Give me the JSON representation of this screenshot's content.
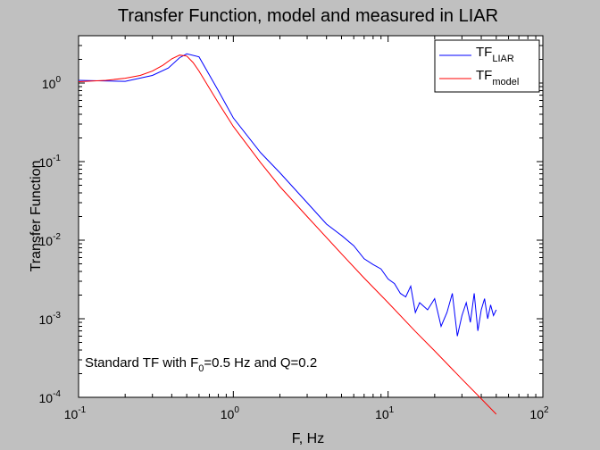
{
  "chart_data": {
    "type": "line",
    "title": "Transfer Function, model and measured in LIAR",
    "xlabel": "F, Hz",
    "ylabel": "Transfer Function",
    "x_scale": "log",
    "y_scale": "log",
    "xlim": [
      0.1,
      100
    ],
    "ylim": [
      0.0001,
      4
    ],
    "grid": false,
    "legend_position": "top-right",
    "x_ticks": [
      {
        "base": "10",
        "exp": "-1",
        "value": 0.1
      },
      {
        "base": "10",
        "exp": "0",
        "value": 1
      },
      {
        "base": "10",
        "exp": "1",
        "value": 10
      },
      {
        "base": "10",
        "exp": "2",
        "value": 100
      }
    ],
    "y_ticks": [
      {
        "base": "10",
        "exp": "-4",
        "value": 0.0001
      },
      {
        "base": "10",
        "exp": "-3",
        "value": 0.001
      },
      {
        "base": "10",
        "exp": "-2",
        "value": 0.01
      },
      {
        "base": "10",
        "exp": "-1",
        "value": 0.1
      },
      {
        "base": "10",
        "exp": "0",
        "value": 1
      }
    ],
    "annotation": {
      "prefix": "Standard TF  with F",
      "sub": "0",
      "suffix": "=0.5 Hz  and Q=0.2"
    },
    "series": [
      {
        "name": "TF",
        "name_sub": "LIAR",
        "color": "#0000ff",
        "x": [
          0.1,
          0.2,
          0.3,
          0.38,
          0.45,
          0.5,
          0.6,
          0.8,
          1.0,
          1.5,
          2.0,
          3.0,
          4.0,
          5.0,
          6.0,
          7.0,
          8.0,
          9.0,
          10.0,
          11.0,
          12.0,
          13.0,
          14.0,
          15.0,
          16.0,
          18.0,
          20.0,
          22.0,
          24.0,
          26.0,
          28.0,
          30.0,
          32.0,
          34.0,
          36.0,
          38.0,
          40.0,
          42.0,
          44.0,
          46.0,
          48.0,
          50.0
        ],
        "y": [
          1.08,
          1.05,
          1.25,
          1.55,
          2.1,
          2.35,
          2.15,
          0.8,
          0.36,
          0.13,
          0.072,
          0.03,
          0.016,
          0.0115,
          0.0085,
          0.0058,
          0.0049,
          0.0043,
          0.0032,
          0.0028,
          0.0021,
          0.0019,
          0.0026,
          0.0012,
          0.0016,
          0.0013,
          0.0018,
          0.0008,
          0.0012,
          0.0021,
          0.0006,
          0.0011,
          0.0016,
          0.0009,
          0.0021,
          0.0007,
          0.0013,
          0.0018,
          0.001,
          0.0015,
          0.0011,
          0.0013
        ]
      },
      {
        "name": "TF",
        "name_sub": "model",
        "color": "#ff0000",
        "x": [
          0.1,
          0.15,
          0.2,
          0.25,
          0.3,
          0.35,
          0.4,
          0.45,
          0.5,
          0.55,
          0.6,
          0.7,
          0.8,
          1.0,
          1.5,
          2.0,
          3.0,
          5.0,
          7.0,
          10.0,
          15.0,
          20.0,
          30.0,
          40.0,
          50.0
        ],
        "y": [
          1.04,
          1.08,
          1.15,
          1.25,
          1.42,
          1.68,
          2.03,
          2.27,
          2.2,
          1.82,
          1.42,
          0.86,
          0.56,
          0.28,
          0.097,
          0.048,
          0.02,
          0.0067,
          0.0033,
          0.0016,
          0.00069,
          0.00039,
          0.00017,
          9.6e-05,
          6.1e-05
        ]
      }
    ]
  }
}
